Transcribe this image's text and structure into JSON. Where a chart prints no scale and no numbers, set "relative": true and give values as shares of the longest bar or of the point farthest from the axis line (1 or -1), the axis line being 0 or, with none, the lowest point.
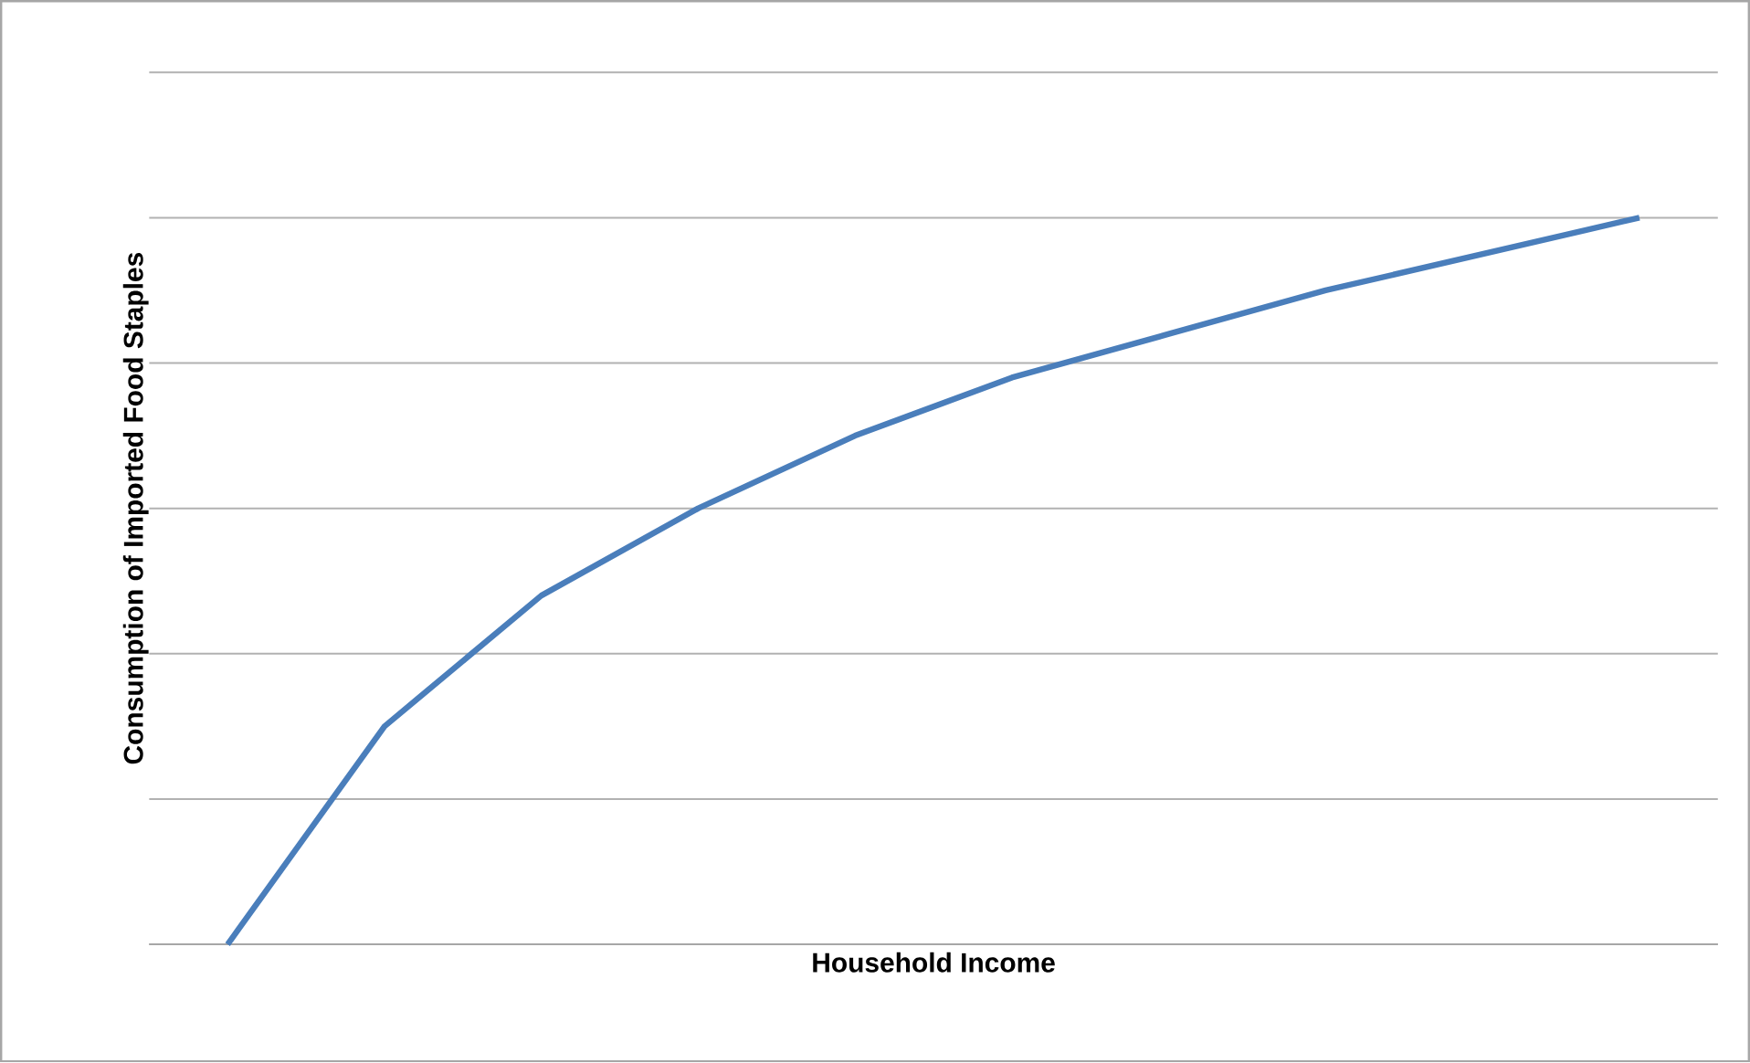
{
  "chart_data": {
    "type": "line",
    "xlabel": "Household Income",
    "ylabel": "Consumption of Imported Food Staples",
    "relative": true,
    "grid": "y",
    "categories": [
      null,
      null,
      null,
      null,
      null,
      null,
      null,
      null,
      null,
      null
    ],
    "series": [
      {
        "color": "#4a7ebb",
        "values": [
          0,
          0.3,
          0.48,
          0.6,
          0.7,
          0.78,
          0.84,
          0.9,
          0.95,
          1
        ]
      }
    ],
    "tick_labels": false,
    "marker": "none",
    "line_style": "solid"
  }
}
